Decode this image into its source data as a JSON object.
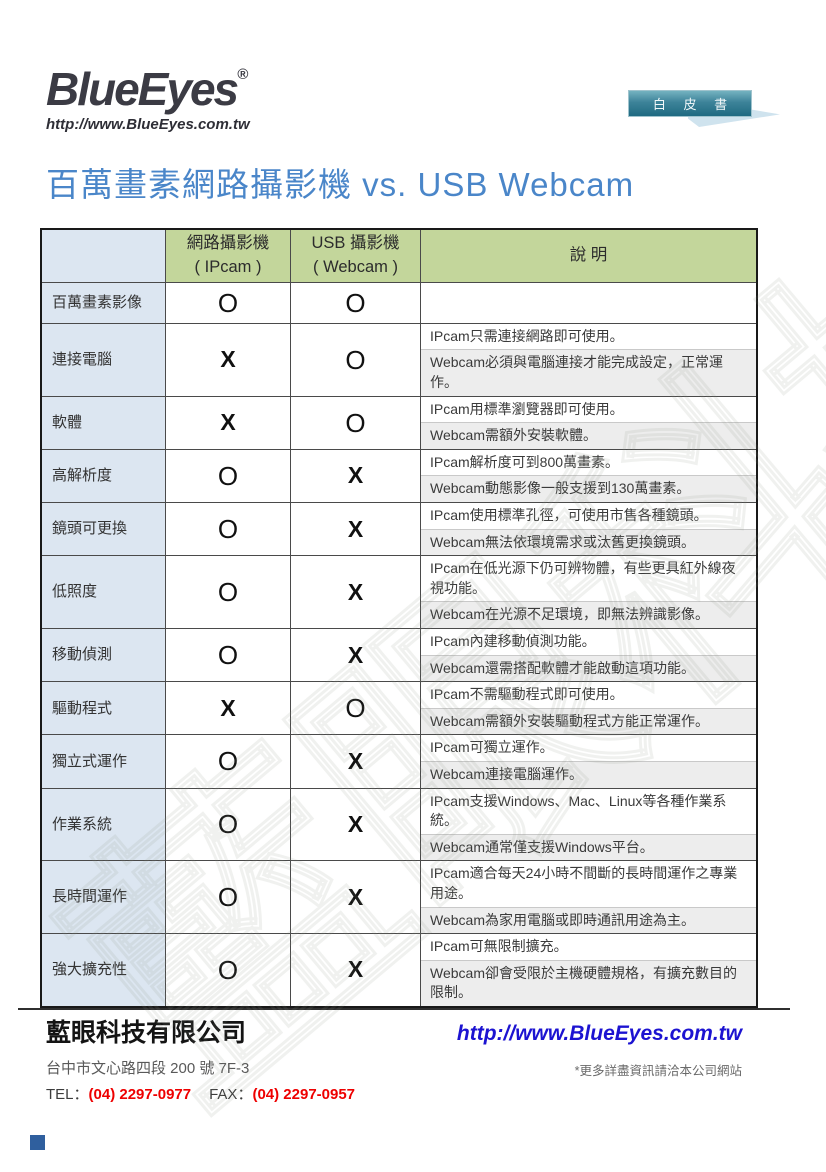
{
  "colors": {
    "title_blue": "#4a86c9",
    "header_green": "#c3d69b",
    "label_blue": "#dce6f1",
    "badge_teal": "#1f6a81",
    "badge_tail_blue": "#cfe3ee",
    "phone_red": "#ee0000",
    "url_blue": "#1c13d1",
    "sub_row_gray": "#ededed"
  },
  "logo": {
    "text": "BlueEyes",
    "registered_mark": "®",
    "url": "http://www.BlueEyes.com.tw"
  },
  "badge": {
    "label": "白 皮 書"
  },
  "title": "百萬畫素網路攝影機 vs. USB Webcam",
  "watermark": "藍眼科技",
  "table": {
    "headers": {
      "feature": "",
      "ipcam_line1": "網路攝影機",
      "ipcam_line2": "( IPcam )",
      "webcam_line1": "USB 攝影機",
      "webcam_line2": "( Webcam )",
      "desc": "說 明"
    },
    "rows": [
      {
        "feature": "百萬畫素影像",
        "ipcam": "O",
        "webcam": "O",
        "desc": []
      },
      {
        "feature": "連接電腦",
        "ipcam": "X",
        "webcam": "O",
        "desc": [
          "IPcam只需連接網路即可使用。",
          "Webcam必須與電腦連接才能完成設定，正常運作。"
        ]
      },
      {
        "feature": "軟體",
        "ipcam": "X",
        "webcam": "O",
        "desc": [
          "IPcam用標準瀏覽器即可使用。",
          "Webcam需額外安裝軟體。"
        ]
      },
      {
        "feature": "高解析度",
        "ipcam": "O",
        "webcam": "X",
        "desc": [
          "IPcam解析度可到800萬畫素。",
          "Webcam動態影像一般支援到130萬畫素。"
        ]
      },
      {
        "feature": "鏡頭可更換",
        "ipcam": "O",
        "webcam": "X",
        "desc": [
          "IPcam使用標準孔徑，可使用市售各種鏡頭。",
          "Webcam無法依環境需求或汰舊更換鏡頭。"
        ]
      },
      {
        "feature": "低照度",
        "ipcam": "O",
        "webcam": "X",
        "desc": [
          "IPcam在低光源下仍可辨物體，有些更具紅外線夜視功能。",
          "Webcam在光源不足環境，即無法辨識影像。"
        ]
      },
      {
        "feature": "移動偵測",
        "ipcam": "O",
        "webcam": "X",
        "desc": [
          "IPcam內建移動偵測功能。",
          "Webcam還需搭配軟體才能啟動這項功能。"
        ]
      },
      {
        "feature": "驅動程式",
        "ipcam": "X",
        "webcam": "O",
        "desc": [
          "IPcam不需驅動程式即可使用。",
          "Webcam需額外安裝驅動程式方能正常運作。"
        ]
      },
      {
        "feature": "獨立式運作",
        "ipcam": "O",
        "webcam": "X",
        "desc": [
          "IPcam可獨立運作。",
          "Webcam連接電腦運作。"
        ]
      },
      {
        "feature": "作業系統",
        "ipcam": "O",
        "webcam": "X",
        "desc": [
          "IPcam支援Windows、Mac、Linux等各種作業系統。",
          "Webcam通常僅支援Windows平台。"
        ]
      },
      {
        "feature": "長時間運作",
        "ipcam": "O",
        "webcam": "X",
        "desc": [
          "IPcam適合每天24小時不間斷的長時間運作之專業用途。",
          "Webcam為家用電腦或即時通訊用途為主。"
        ]
      },
      {
        "feature": "強大擴充性",
        "ipcam": "O",
        "webcam": "X",
        "desc": [
          "IPcam可無限制擴充。",
          "Webcam卻會受限於主機硬體規格，有擴充數目的限制。"
        ]
      }
    ]
  },
  "footer": {
    "company": "藍眼科技有限公司",
    "address": "台中市文心路四段 200 號 7F-3",
    "tel_label": "TEL：",
    "tel_number": "(04) 2297-0977",
    "fax_label": "FAX：",
    "fax_number": "(04) 2297-0957",
    "url": "http://www.BlueEyes.com.tw",
    "note": "*更多詳盡資訊請洽本公司網站"
  }
}
